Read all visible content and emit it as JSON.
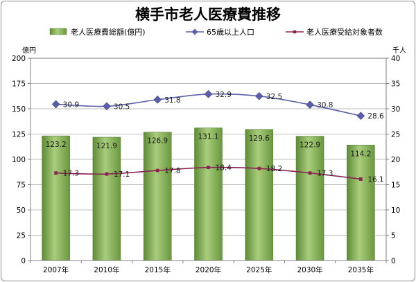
{
  "chart_data": {
    "type": "bar",
    "title": "横手市老人医療費推移",
    "categories": [
      "2007年",
      "2010年",
      "2015年",
      "2020年",
      "2025年",
      "2030年",
      "2035年"
    ],
    "series": [
      {
        "name": "老人医療費総額(億円)",
        "kind": "bar",
        "axis": "left",
        "values": [
          123.2,
          121.9,
          126.9,
          131.1,
          129.6,
          122.9,
          114.2
        ],
        "color": "#7fac4f"
      },
      {
        "name": "65歳以上人口",
        "kind": "line",
        "axis": "right",
        "values": [
          30.9,
          30.5,
          31.8,
          32.9,
          32.5,
          30.8,
          28.6
        ],
        "color": "#5b5fa8"
      },
      {
        "name": "老人医療受給対象者数",
        "kind": "line",
        "axis": "right",
        "values": [
          17.3,
          17.1,
          17.8,
          18.4,
          18.2,
          17.3,
          16.1
        ],
        "color": "#8b2252"
      }
    ],
    "y_left": {
      "unit": "億円",
      "min": 0,
      "max": 200,
      "ticks": [
        0,
        25,
        50,
        75,
        100,
        125,
        150,
        175,
        200
      ]
    },
    "y_right": {
      "unit": "千人",
      "min": 0,
      "max": 40,
      "ticks": [
        0,
        5,
        10,
        15,
        20,
        25,
        30,
        35,
        40
      ]
    },
    "grid": true,
    "legend_position": "top"
  }
}
